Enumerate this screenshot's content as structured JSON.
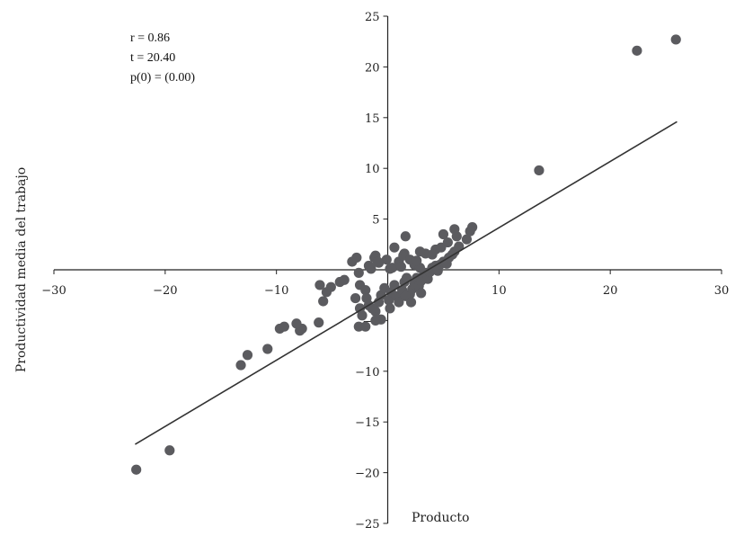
{
  "chart_data": {
    "type": "scatter",
    "title": "",
    "xlabel": "Producto",
    "ylabel": "Productividad media del trabajo",
    "xlim": [
      -30,
      30
    ],
    "ylim": [
      -25,
      25
    ],
    "x_ticks": [
      -30,
      -20,
      -10,
      10,
      20,
      30
    ],
    "y_ticks": [
      -25,
      -20,
      -15,
      -10,
      -5,
      5,
      10,
      15,
      20,
      25
    ],
    "grid": false,
    "annotations": [
      "r = 0.86",
      "t = 20.40",
      "p(0) = (0.00)"
    ],
    "regression_line": {
      "x": [
        -22.7,
        26.0
      ],
      "y": [
        -17.2,
        14.6
      ]
    },
    "series": [
      {
        "points": [
          [
            -22.6,
            -19.7
          ],
          [
            -19.6,
            -17.8
          ],
          [
            -13.2,
            -9.4
          ],
          [
            -12.6,
            -8.4
          ],
          [
            -10.8,
            -7.8
          ],
          [
            -9.7,
            -5.8
          ],
          [
            -9.3,
            -5.6
          ],
          [
            -7.7,
            -5.8
          ],
          [
            -6.2,
            -5.2
          ],
          [
            -7.9,
            -6.0
          ],
          [
            -8.2,
            -5.3
          ],
          [
            -6.1,
            -1.5
          ],
          [
            -5.8,
            -3.1
          ],
          [
            -5.5,
            -2.2
          ],
          [
            -5.1,
            -1.7
          ],
          [
            -4.3,
            -1.2
          ],
          [
            -3.9,
            -1.0
          ],
          [
            -2.6,
            -5.6
          ],
          [
            -2.0,
            -5.6
          ],
          [
            -2.6,
            -0.3
          ],
          [
            -2.5,
            -1.5
          ],
          [
            -2.0,
            -2.0
          ],
          [
            -1.9,
            -2.8
          ],
          [
            -1.7,
            -3.5
          ],
          [
            -1.1,
            -4.1
          ],
          [
            -0.8,
            -3.2
          ],
          [
            -0.6,
            -2.5
          ],
          [
            -0.6,
            -4.9
          ],
          [
            -1.4,
            -3.8
          ],
          [
            -0.3,
            -1.8
          ],
          [
            0.1,
            -3.0
          ],
          [
            0.3,
            -2.2
          ],
          [
            0.6,
            -1.5
          ],
          [
            0.8,
            -2.6
          ],
          [
            1.0,
            -3.2
          ],
          [
            1.3,
            -2.0
          ],
          [
            1.5,
            -1.2
          ],
          [
            1.7,
            -0.8
          ],
          [
            2.0,
            -2.4
          ],
          [
            2.2,
            -1.9
          ],
          [
            2.4,
            -1.4
          ],
          [
            2.6,
            -0.8
          ],
          [
            2.8,
            -1.6
          ],
          [
            3.0,
            -1.1
          ],
          [
            3.2,
            -0.6
          ],
          [
            3.4,
            -0.3
          ],
          [
            3.6,
            -0.9
          ],
          [
            3.8,
            -0.2
          ],
          [
            4.0,
            0.2
          ],
          [
            4.3,
            0.4
          ],
          [
            4.5,
            -0.1
          ],
          [
            4.7,
            0.5
          ],
          [
            5.0,
            0.8
          ],
          [
            5.3,
            0.6
          ],
          [
            5.5,
            1.2
          ],
          [
            5.8,
            1.5
          ],
          [
            6.0,
            1.8
          ],
          [
            1.5,
            1.6
          ],
          [
            2.4,
            0.5
          ],
          [
            -1.1,
            1.4
          ],
          [
            -0.1,
            1.0
          ],
          [
            -3.2,
            0.8
          ],
          [
            -2.8,
            1.2
          ],
          [
            -1.2,
            1.2
          ],
          [
            -1.5,
            0.1
          ],
          [
            0.2,
            0.1
          ],
          [
            1.0,
            0.8
          ],
          [
            2.9,
            0.2
          ],
          [
            -0.8,
            0.7
          ],
          [
            3.4,
            1.6
          ],
          [
            4.3,
            2.0
          ],
          [
            0.6,
            2.2
          ],
          [
            1.6,
            3.3
          ],
          [
            2.9,
            1.8
          ],
          [
            4.0,
            1.5
          ],
          [
            4.8,
            2.2
          ],
          [
            5.4,
            2.7
          ],
          [
            6.2,
            3.3
          ],
          [
            7.1,
            3.0
          ],
          [
            7.4,
            3.8
          ],
          [
            7.6,
            4.2
          ],
          [
            5.0,
            3.5
          ],
          [
            6.0,
            4.0
          ],
          [
            6.4,
            2.3
          ],
          [
            1.4,
            1.4
          ],
          [
            2.0,
            1.0
          ],
          [
            2.6,
            0.9
          ],
          [
            -1.7,
            0.4
          ],
          [
            -0.9,
            0.8
          ],
          [
            0.4,
            0.2
          ],
          [
            1.2,
            0.3
          ],
          [
            -2.9,
            -2.8
          ],
          [
            -2.5,
            -3.8
          ],
          [
            -2.3,
            -4.5
          ],
          [
            -1.1,
            -5.0
          ],
          [
            0.2,
            -3.8
          ],
          [
            1.6,
            -2.6
          ],
          [
            2.1,
            -3.2
          ],
          [
            3.0,
            -2.3
          ],
          [
            13.6,
            9.8
          ],
          [
            22.4,
            21.6
          ],
          [
            25.9,
            22.7
          ]
        ]
      }
    ]
  }
}
